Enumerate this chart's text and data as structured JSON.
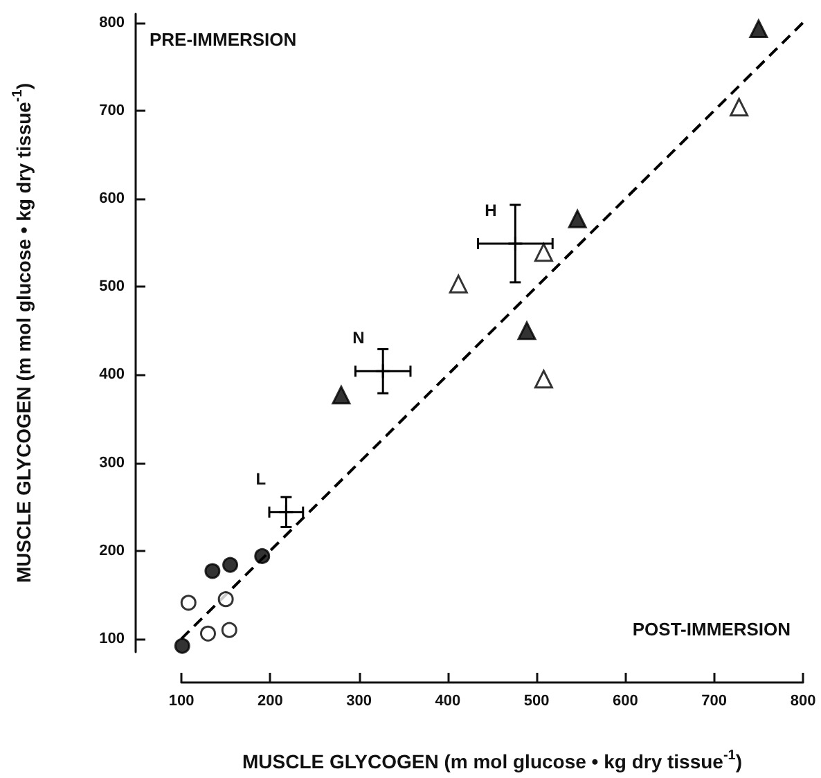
{
  "chart_data": {
    "type": "scatter",
    "xlabel": "MUSCLE GLYCOGEN (m mol glucose • kg dry tissue$^{-1}$)",
    "ylabel": "MUSCLE GLYCOGEN (m mol glucose • kg dry tissue$^{-1}$)",
    "xlim": [
      100,
      800
    ],
    "xticks": [
      100,
      200,
      300,
      400,
      500,
      600,
      700,
      800
    ],
    "ylim": [
      85,
      810
    ],
    "yticks": [
      100,
      200,
      300,
      400,
      500,
      600,
      700,
      800
    ],
    "grid": false,
    "annotations": [
      "PRE-IMMERSION",
      "POST-IMMERSION",
      {
        "text": "H",
        "x": 476,
        "y": 549
      },
      {
        "text": "N",
        "x": 327,
        "y": 404
      },
      {
        "text": "L",
        "x": 218,
        "y": 244
      }
    ],
    "series": [
      {
        "marker": "circle",
        "color": "#000000",
        "x": [
          101,
          135,
          155,
          191
        ],
        "values": [
          92,
          177,
          184,
          194
        ]
      },
      {
        "marker": "circle",
        "color": "#ffffff",
        "x": [
          108,
          150,
          130,
          154
        ],
        "values": [
          141,
          145,
          106,
          110
        ]
      },
      {
        "marker": "triangle",
        "color": "#000000",
        "x": [
          280,
          489,
          546,
          750
        ],
        "values": [
          377,
          450,
          577,
          793
        ]
      },
      {
        "marker": "triangle",
        "color": "#ffffff",
        "x": [
          412,
          508,
          508,
          728
        ],
        "values": [
          503,
          539,
          395,
          704
        ]
      },
      {
        "marker": "cross",
        "color": "#000000",
        "x": [
          476,
          327,
          218
        ],
        "values": [
          549,
          404,
          244
        ],
        "errors": [
          44,
          25,
          17
        ],
        "xerrors": [
          42,
          31,
          19
        ]
      },
      {
        "type": "line",
        "marker": "none",
        "line_style": "dashed",
        "color": "#000000",
        "x": [
          100,
          800
        ],
        "values": [
          100,
          800
        ]
      }
    ]
  }
}
